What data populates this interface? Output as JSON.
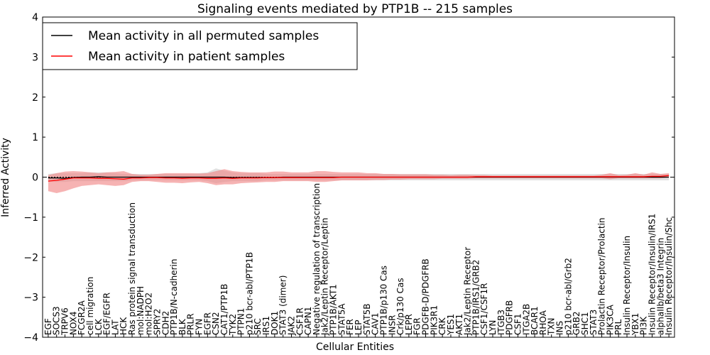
{
  "chart_data": {
    "type": "line",
    "title": "Signaling events mediated by PTP1B -- 215 samples",
    "xlabel": "Cellular Entities",
    "ylabel": "Inferred Activity",
    "ylim": [
      -4,
      4
    ],
    "yticks": [
      -4,
      -3,
      -2,
      -1,
      0,
      1,
      2,
      3,
      4
    ],
    "grid": false,
    "legend_position": "top-left",
    "colors": {
      "permuted": "#000000",
      "patient": "#ff0000",
      "patient_band": "#f08080",
      "permuted_band": "#c8c8c8"
    },
    "categories": [
      "EGF",
      "SOCS3",
      "TRPV6",
      "NOX4",
      "FCGR2A",
      "cell migration",
      "LCK",
      "EGF/EGFR",
      "LAT",
      "HCK",
      "Ras protein signal transduction",
      "mol:NADPH",
      "mol:H2O2",
      "SPRY2",
      "CDH2",
      "PTP1B/N-cadherin",
      "BLK",
      "PRLR",
      "FYN",
      "EGFR",
      "CSN2",
      "CAT1/PTP1B",
      "TYK2",
      "PTPN1",
      "p210 bcr-abl/PTP1B",
      "SRC",
      "IRS1",
      "DOK1",
      "STAT3 (dimer)",
      "JAK2",
      "CSF1R",
      "CAPN1",
      "Negative regulation of transcription",
      "Jak2/Leptin Receptor/Leptin",
      "PTP1B/AKT1",
      "STAT5A",
      "FER",
      "LEP",
      "STAT5B",
      "CAV1",
      "PTP1B/p130 Cas",
      "INSR",
      "Crk/p130 Cas",
      "LEPR",
      "FGR",
      "PDGFB-D/PDGFRB",
      "PIK3R1",
      "CRK",
      "YES1",
      "AKT1",
      "Jak2/Leptin Receptor",
      "PTP1B/IRS1/GRB2",
      "CSF1/CSF1R",
      "LYN",
      "ITGB3",
      "PDGFRB",
      "CSF1",
      "ITGA2B",
      "BCAR1",
      "RHOA",
      "TXN",
      "INS",
      "p210 bcr-abl/Grb2",
      "GRB2",
      "SHC1",
      "STAT3",
      "Prolactin Receptor/Prolactin",
      "PIK3CA",
      "PRL",
      "Insulin Receptor/Insulin",
      "YBX1",
      "PI3K",
      "Insulin Receptor/Insulin/IRS1",
      "alphaIIb/beta3 Integrin",
      "Insulin Receptor/Insulin/Shc"
    ],
    "series": [
      {
        "name": "Mean activity in all permuted samples",
        "values": [
          -0.02,
          -0.02,
          -0.03,
          -0.01,
          0.0,
          0.0,
          0.01,
          0.0,
          0.0,
          0.0,
          0.0,
          0.0,
          0.0,
          0.0,
          0.0,
          0.0,
          0.0,
          0.0,
          0.0,
          0.0,
          0.0,
          0.0,
          -0.01,
          -0.01,
          -0.01,
          -0.01,
          -0.01,
          -0.01,
          0.0,
          0.0,
          0.0,
          0.0,
          0.0,
          0.0,
          0.0,
          0.0,
          0.0,
          0.0,
          0.0,
          0.0,
          0.0,
          0.0,
          0.0,
          0.0,
          0.0,
          0.0,
          0.0,
          0.0,
          0.0,
          0.0,
          0.0,
          0.0,
          0.0,
          0.0,
          0.0,
          0.0,
          0.0,
          0.0,
          0.0,
          0.0,
          0.0,
          0.0,
          0.0,
          0.0,
          0.0,
          0.0,
          0.0,
          0.0,
          0.0,
          0.0,
          0.0,
          0.0,
          0.0,
          0.0,
          0.0
        ],
        "lower": [
          -0.1,
          -0.12,
          -0.12,
          -0.1,
          -0.1,
          -0.1,
          -0.1,
          -0.1,
          -0.1,
          -0.1,
          -0.08,
          -0.08,
          -0.08,
          -0.08,
          -0.08,
          -0.08,
          -0.08,
          -0.08,
          -0.08,
          -0.1,
          -0.15,
          -0.12,
          -0.1,
          -0.1,
          -0.1,
          -0.1,
          -0.08,
          -0.08,
          -0.08,
          -0.08,
          -0.08,
          -0.08,
          -0.08,
          -0.08,
          -0.08,
          -0.08,
          -0.08,
          -0.08,
          -0.08,
          -0.08,
          -0.08,
          -0.08,
          -0.08,
          -0.08,
          -0.08,
          -0.08,
          -0.08,
          -0.08,
          -0.08,
          -0.08,
          -0.08,
          -0.08,
          -0.08,
          -0.08,
          -0.08,
          -0.08,
          -0.08,
          -0.08,
          -0.08,
          -0.08,
          -0.08,
          -0.08,
          -0.08,
          -0.08,
          -0.08,
          -0.08,
          -0.08,
          -0.08,
          -0.08,
          -0.08,
          -0.08,
          -0.08,
          -0.08,
          -0.08,
          -0.08
        ],
        "upper": [
          0.08,
          0.1,
          0.1,
          0.1,
          0.1,
          0.12,
          0.12,
          0.12,
          0.1,
          0.08,
          0.08,
          0.08,
          0.08,
          0.08,
          0.08,
          0.08,
          0.08,
          0.08,
          0.1,
          0.12,
          0.22,
          0.16,
          0.12,
          0.1,
          0.1,
          0.1,
          0.08,
          0.08,
          0.08,
          0.08,
          0.08,
          0.08,
          0.08,
          0.08,
          0.08,
          0.08,
          0.08,
          0.08,
          0.08,
          0.08,
          0.08,
          0.08,
          0.08,
          0.08,
          0.08,
          0.08,
          0.08,
          0.08,
          0.08,
          0.08,
          0.08,
          0.08,
          0.08,
          0.08,
          0.08,
          0.08,
          0.08,
          0.08,
          0.08,
          0.08,
          0.08,
          0.08,
          0.08,
          0.08,
          0.08,
          0.08,
          0.08,
          0.08,
          0.08,
          0.08,
          0.08,
          0.08,
          0.08,
          0.08,
          0.08
        ]
      },
      {
        "name": "Mean activity in patient samples",
        "values": [
          -0.1,
          -0.08,
          -0.05,
          -0.02,
          -0.02,
          -0.02,
          -0.03,
          -0.03,
          -0.04,
          -0.05,
          -0.02,
          -0.02,
          -0.01,
          -0.01,
          -0.02,
          -0.02,
          -0.03,
          -0.02,
          -0.02,
          -0.03,
          -0.03,
          -0.02,
          -0.03,
          -0.02,
          -0.02,
          -0.02,
          -0.01,
          -0.01,
          -0.01,
          -0.01,
          -0.01,
          -0.01,
          -0.01,
          -0.01,
          -0.01,
          0.0,
          0.0,
          0.0,
          0.0,
          0.0,
          0.0,
          0.0,
          0.0,
          0.0,
          0.0,
          0.0,
          0.0,
          0.0,
          0.0,
          0.0,
          0.0,
          0.01,
          0.01,
          0.01,
          0.01,
          0.01,
          0.01,
          0.01,
          0.01,
          0.01,
          0.01,
          0.01,
          0.01,
          0.01,
          0.01,
          0.01,
          0.01,
          0.01,
          0.01,
          0.01,
          0.01,
          0.01,
          0.02,
          0.02,
          0.04
        ],
        "lower": [
          -0.35,
          -0.4,
          -0.35,
          -0.28,
          -0.22,
          -0.2,
          -0.18,
          -0.2,
          -0.22,
          -0.2,
          -0.12,
          -0.1,
          -0.1,
          -0.12,
          -0.14,
          -0.14,
          -0.15,
          -0.13,
          -0.12,
          -0.15,
          -0.2,
          -0.18,
          -0.18,
          -0.15,
          -0.14,
          -0.13,
          -0.12,
          -0.12,
          -0.1,
          -0.1,
          -0.1,
          -0.1,
          -0.12,
          -0.12,
          -0.1,
          -0.08,
          -0.08,
          -0.08,
          -0.08,
          -0.07,
          -0.07,
          -0.06,
          -0.06,
          -0.05,
          -0.05,
          -0.05,
          -0.05,
          -0.04,
          -0.04,
          -0.04,
          -0.04,
          -0.03,
          -0.03,
          -0.03,
          -0.03,
          -0.03,
          -0.03,
          -0.03,
          -0.03,
          -0.03,
          -0.03,
          -0.03,
          -0.03,
          -0.03,
          -0.03,
          -0.03,
          -0.03,
          -0.05,
          -0.03,
          -0.03,
          -0.03,
          -0.03,
          -0.03,
          -0.03,
          -0.01
        ],
        "upper": [
          0.05,
          0.1,
          0.14,
          0.15,
          0.14,
          0.12,
          0.1,
          0.12,
          0.13,
          0.15,
          0.08,
          0.06,
          0.06,
          0.08,
          0.1,
          0.1,
          0.1,
          0.1,
          0.09,
          0.1,
          0.15,
          0.2,
          0.15,
          0.13,
          0.12,
          0.12,
          0.12,
          0.14,
          0.14,
          0.12,
          0.12,
          0.12,
          0.15,
          0.15,
          0.13,
          0.12,
          0.12,
          0.12,
          0.1,
          0.1,
          0.08,
          0.08,
          0.07,
          0.07,
          0.07,
          0.07,
          0.06,
          0.06,
          0.05,
          0.06,
          0.06,
          0.05,
          0.05,
          0.04,
          0.04,
          0.04,
          0.04,
          0.04,
          0.04,
          0.04,
          0.04,
          0.04,
          0.04,
          0.04,
          0.04,
          0.04,
          0.06,
          0.1,
          0.05,
          0.06,
          0.1,
          0.06,
          0.12,
          0.08,
          0.1
        ]
      }
    ]
  }
}
